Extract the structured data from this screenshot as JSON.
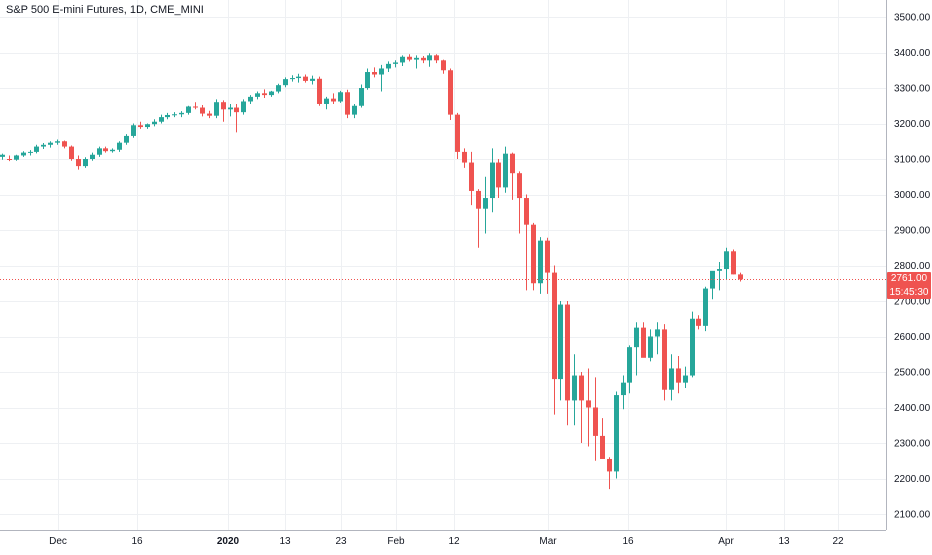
{
  "chart_data": {
    "type": "candlestick",
    "title": "S&P 500 E-mini Futures, 1D, CME_MINI",
    "y_range": [
      2050,
      3550
    ],
    "y_ticks": [
      2100,
      2200,
      2300,
      2400,
      2500,
      2600,
      2700,
      2800,
      2900,
      3000,
      3100,
      3200,
      3300,
      3400,
      3500
    ],
    "x_ticks": [
      {
        "label": "Dec",
        "bold": false
      },
      {
        "label": "16",
        "bold": false
      },
      {
        "label": "2020",
        "bold": true
      },
      {
        "label": "13",
        "bold": false
      },
      {
        "label": "23",
        "bold": false
      },
      {
        "label": "Feb",
        "bold": false
      },
      {
        "label": "12",
        "bold": false
      },
      {
        "label": "Mar",
        "bold": false
      },
      {
        "label": "16",
        "bold": false
      },
      {
        "label": "Apr",
        "bold": false
      },
      {
        "label": "13",
        "bold": false
      },
      {
        "label": "22",
        "bold": false
      }
    ],
    "last_price": 2761.0,
    "last_price_label": "2761.00",
    "countdown": "15:45:30",
    "colors": {
      "up": "#26a69a",
      "down": "#ef5350",
      "grid": "#eef0f3",
      "axis_text": "#131722",
      "last_price_line": "#ef5350"
    },
    "candles": [
      [
        3106,
        3115,
        3098,
        3112
      ],
      [
        3100,
        3110,
        3094,
        3098
      ],
      [
        3098,
        3112,
        3095,
        3110
      ],
      [
        3110,
        3122,
        3106,
        3118
      ],
      [
        3118,
        3125,
        3110,
        3120
      ],
      [
        3120,
        3140,
        3116,
        3135
      ],
      [
        3135,
        3145,
        3128,
        3140
      ],
      [
        3140,
        3150,
        3132,
        3146
      ],
      [
        3146,
        3155,
        3140,
        3150
      ],
      [
        3150,
        3152,
        3130,
        3135
      ],
      [
        3135,
        3138,
        3095,
        3100
      ],
      [
        3100,
        3110,
        3070,
        3080
      ],
      [
        3080,
        3105,
        3075,
        3100
      ],
      [
        3100,
        3118,
        3095,
        3112
      ],
      [
        3112,
        3135,
        3106,
        3130
      ],
      [
        3130,
        3135,
        3118,
        3122
      ],
      [
        3122,
        3130,
        3118,
        3126
      ],
      [
        3126,
        3150,
        3120,
        3146
      ],
      [
        3146,
        3170,
        3140,
        3165
      ],
      [
        3165,
        3200,
        3160,
        3195
      ],
      [
        3195,
        3205,
        3185,
        3190
      ],
      [
        3190,
        3200,
        3185,
        3198
      ],
      [
        3198,
        3212,
        3192,
        3205
      ],
      [
        3205,
        3225,
        3200,
        3218
      ],
      [
        3218,
        3230,
        3212,
        3224
      ],
      [
        3224,
        3232,
        3218,
        3226
      ],
      [
        3226,
        3235,
        3218,
        3230
      ],
      [
        3230,
        3250,
        3225,
        3248
      ],
      [
        3248,
        3260,
        3240,
        3245
      ],
      [
        3245,
        3252,
        3220,
        3228
      ],
      [
        3228,
        3236,
        3215,
        3222
      ],
      [
        3222,
        3268,
        3215,
        3260
      ],
      [
        3260,
        3265,
        3205,
        3240
      ],
      [
        3240,
        3255,
        3220,
        3245
      ],
      [
        3245,
        3255,
        3175,
        3232
      ],
      [
        3232,
        3268,
        3225,
        3262
      ],
      [
        3262,
        3280,
        3255,
        3275
      ],
      [
        3275,
        3290,
        3268,
        3285
      ],
      [
        3285,
        3296,
        3272,
        3280
      ],
      [
        3280,
        3292,
        3275,
        3290
      ],
      [
        3290,
        3312,
        3285,
        3308
      ],
      [
        3308,
        3330,
        3302,
        3325
      ],
      [
        3325,
        3336,
        3318,
        3328
      ],
      [
        3328,
        3340,
        3315,
        3332
      ],
      [
        3332,
        3338,
        3315,
        3320
      ],
      [
        3320,
        3335,
        3310,
        3326
      ],
      [
        3326,
        3332,
        3250,
        3255
      ],
      [
        3255,
        3275,
        3240,
        3270
      ],
      [
        3270,
        3285,
        3255,
        3262
      ],
      [
        3262,
        3292,
        3258,
        3288
      ],
      [
        3288,
        3295,
        3215,
        3225
      ],
      [
        3225,
        3255,
        3215,
        3250
      ],
      [
        3250,
        3310,
        3245,
        3300
      ],
      [
        3300,
        3355,
        3295,
        3345
      ],
      [
        3345,
        3358,
        3330,
        3338
      ],
      [
        3338,
        3365,
        3290,
        3355
      ],
      [
        3355,
        3375,
        3345,
        3368
      ],
      [
        3368,
        3378,
        3358,
        3372
      ],
      [
        3372,
        3392,
        3362,
        3388
      ],
      [
        3388,
        3395,
        3375,
        3380
      ],
      [
        3380,
        3392,
        3355,
        3385
      ],
      [
        3385,
        3390,
        3370,
        3378
      ],
      [
        3378,
        3398,
        3360,
        3392
      ],
      [
        3392,
        3395,
        3370,
        3378
      ],
      [
        3378,
        3380,
        3340,
        3350
      ],
      [
        3350,
        3355,
        3210,
        3225
      ],
      [
        3225,
        3230,
        3100,
        3120
      ],
      [
        3120,
        3130,
        3075,
        3090
      ],
      [
        3090,
        3120,
        2970,
        3010
      ],
      [
        3010,
        3015,
        2850,
        2960
      ],
      [
        2960,
        3050,
        2890,
        2990
      ],
      [
        2990,
        3130,
        2950,
        3090
      ],
      [
        3090,
        3100,
        2990,
        3020
      ],
      [
        3020,
        3135,
        3005,
        3115
      ],
      [
        3115,
        3118,
        2985,
        3060
      ],
      [
        3060,
        3065,
        2890,
        2990
      ],
      [
        2990,
        3000,
        2730,
        2915
      ],
      [
        2915,
        2920,
        2730,
        2750
      ],
      [
        2750,
        2880,
        2720,
        2870
      ],
      [
        2870,
        2878,
        2720,
        2780
      ],
      [
        2780,
        2800,
        2380,
        2480
      ],
      [
        2480,
        2700,
        2420,
        2690
      ],
      [
        2690,
        2700,
        2350,
        2420
      ],
      [
        2420,
        2550,
        2350,
        2490
      ],
      [
        2490,
        2500,
        2300,
        2420
      ],
      [
        2420,
        2510,
        2290,
        2400
      ],
      [
        2400,
        2485,
        2250,
        2320
      ],
      [
        2320,
        2370,
        2260,
        2255
      ],
      [
        2255,
        2260,
        2170,
        2220
      ],
      [
        2220,
        2445,
        2200,
        2435
      ],
      [
        2435,
        2490,
        2395,
        2470
      ],
      [
        2470,
        2575,
        2440,
        2570
      ],
      [
        2570,
        2640,
        2490,
        2625
      ],
      [
        2625,
        2640,
        2555,
        2540
      ],
      [
        2540,
        2620,
        2530,
        2600
      ],
      [
        2600,
        2640,
        2550,
        2620
      ],
      [
        2620,
        2635,
        2420,
        2450
      ],
      [
        2450,
        2550,
        2420,
        2510
      ],
      [
        2510,
        2545,
        2440,
        2470
      ],
      [
        2470,
        2515,
        2455,
        2490
      ],
      [
        2490,
        2670,
        2485,
        2650
      ],
      [
        2650,
        2660,
        2620,
        2630
      ],
      [
        2630,
        2740,
        2615,
        2735
      ],
      [
        2735,
        2780,
        2705,
        2785
      ],
      [
        2785,
        2810,
        2730,
        2790
      ],
      [
        2790,
        2850,
        2760,
        2840
      ],
      [
        2840,
        2845,
        2775,
        2775
      ],
      [
        2775,
        2780,
        2755,
        2761
      ]
    ]
  }
}
